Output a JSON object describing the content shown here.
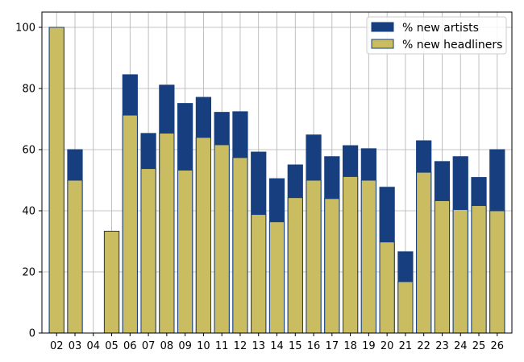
{
  "chart_data": {
    "type": "bar",
    "stacked": "overlay",
    "categories": [
      "02",
      "03",
      "04",
      "05",
      "06",
      "07",
      "08",
      "09",
      "10",
      "11",
      "12",
      "13",
      "14",
      "15",
      "16",
      "17",
      "18",
      "19",
      "20",
      "21",
      "22",
      "23",
      "24",
      "25",
      "26"
    ],
    "series": [
      {
        "name": "% new artists",
        "color": "#173f80",
        "values": [
          100,
          60,
          0,
          33.3,
          84.5,
          65.3,
          81.1,
          75.1,
          77.1,
          72.2,
          72.4,
          59.2,
          50.5,
          55.0,
          64.8,
          57.7,
          61.3,
          60.3,
          47.7,
          26.6,
          62.9,
          56.1,
          57.7,
          50.9,
          60.0
        ]
      },
      {
        "name": "% new headliners",
        "color": "#c9bc61",
        "values": [
          100,
          50,
          0,
          33.3,
          71.3,
          53.8,
          65.4,
          53.3,
          64.0,
          61.6,
          57.4,
          38.8,
          36.4,
          44.3,
          50.0,
          44.0,
          51.2,
          50.0,
          29.8,
          16.8,
          52.6,
          43.3,
          40.4,
          41.7,
          40.0
        ]
      }
    ],
    "ylim": [
      0,
      105
    ],
    "yticks": [
      0,
      20,
      40,
      60,
      80,
      100
    ],
    "grid": true,
    "legend_position": "top-right"
  }
}
